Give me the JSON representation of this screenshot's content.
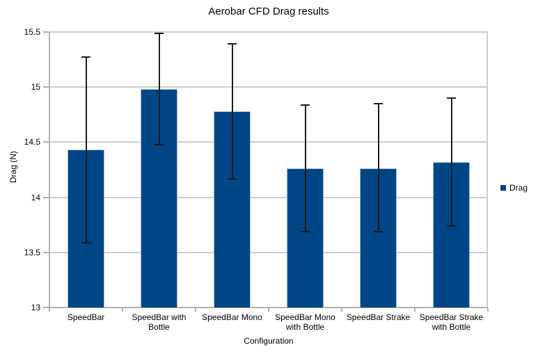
{
  "chart_data": {
    "type": "bar",
    "title": "Aerobar CFD Drag results",
    "xlabel": "Configuration",
    "ylabel": "Drag (N)",
    "ylim": [
      13,
      15.5
    ],
    "ytick_step": 0.5,
    "ytick_labels": [
      "13",
      "13.5",
      "14",
      "14.5",
      "15",
      "15.5"
    ],
    "grid": true,
    "legend_position": "right",
    "categories": [
      "SpeedBar",
      "SpeedBar with\nBottle",
      "SpeedBar Mono",
      "SpeedBar Mono\nwith Bottle",
      "SpeedBar Strake",
      "SpeedBar Strake\nwith Bottle"
    ],
    "series": [
      {
        "name": "Drag",
        "color": "#004586",
        "values": [
          14.43,
          14.98,
          14.78,
          14.26,
          14.26,
          14.32
        ],
        "error_low": [
          13.59,
          14.48,
          14.17,
          13.69,
          13.69,
          13.74
        ],
        "error_high": [
          15.27,
          15.49,
          15.39,
          14.84,
          14.85,
          14.9
        ]
      }
    ],
    "colors": {
      "bar_fill": "#004586",
      "bar_border": "#a3bcd6",
      "gridline": "#cdcdcd",
      "axis": "#b0b0b0",
      "error_bar": "#1c1c1c",
      "background": "#ffffff",
      "text": "#000000"
    }
  }
}
